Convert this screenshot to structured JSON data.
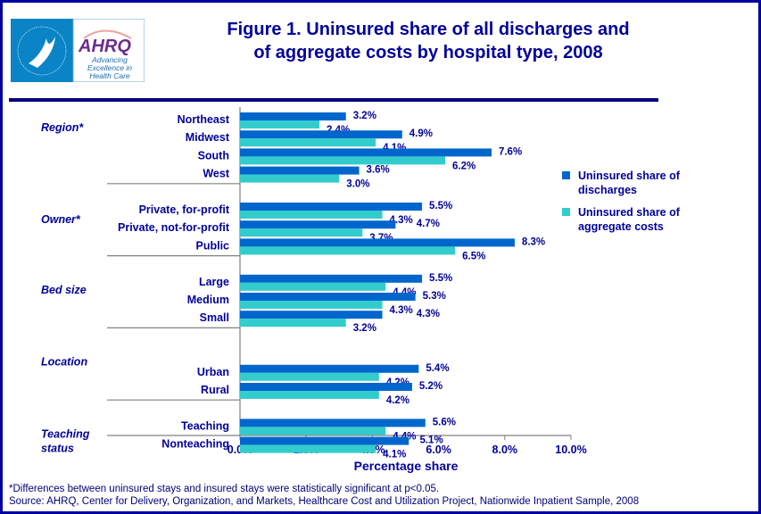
{
  "logo": {
    "text": "AHRQ",
    "tagline": "Advancing Excellence in Health Care",
    "seal_text": "DEPARTMENT OF HEALTH & HUMAN SERVICES USA"
  },
  "footnote": "*Differences between uninsured stays and insured stays were statistically significant at p<0.05.",
  "source": "Source:  AHRQ, Center for Delivery, Organization, and Markets, Healthcare Cost and Utilization Project, Nationwide Inpatient Sample, 2008",
  "chart_data": {
    "type": "bar",
    "orientation": "horizontal",
    "title": "Figure 1. Uninsured share of all discharges and of aggregate costs by hospital type, 2008",
    "title_lines": [
      "Figure 1. Uninsured share of all discharges and",
      "of aggregate costs by hospital type, 2008"
    ],
    "xlabel": "Percentage share",
    "xlim": [
      0,
      10
    ],
    "xticks": [
      "0.0%",
      "2.0%",
      "4.0%",
      "6.0%",
      "8.0%",
      "10.0%"
    ],
    "grid": false,
    "legend_position": "right",
    "colors": {
      "discharges": "#0066cc",
      "costs": "#33cccc",
      "text": "#00009c"
    },
    "series": [
      {
        "name": "Uninsured share of discharges",
        "name_lines": [
          "Uninsured share of",
          "discharges"
        ]
      },
      {
        "name": "Uninsured share of aggregate costs",
        "name_lines": [
          "Uninsured share of",
          "aggregate costs"
        ]
      }
    ],
    "groups": [
      {
        "label": "Region*",
        "label_lines": [
          "Region*"
        ],
        "categories": [
          {
            "label": "Northeast",
            "values": [
              3.2,
              2.4
            ]
          },
          {
            "label": "Midwest",
            "values": [
              4.9,
              4.1
            ]
          },
          {
            "label": "South",
            "values": [
              7.6,
              6.2
            ]
          },
          {
            "label": "West",
            "values": [
              3.6,
              3.0
            ]
          }
        ]
      },
      {
        "label": "Owner*",
        "label_lines": [
          "Owner*"
        ],
        "categories": [
          {
            "label": "Private, for-profit",
            "values": [
              5.5,
              4.3
            ]
          },
          {
            "label": "Private, not-for-profit",
            "values": [
              4.7,
              3.7
            ]
          },
          {
            "label": "Public",
            "values": [
              8.3,
              6.5
            ]
          }
        ]
      },
      {
        "label": "Bed size",
        "label_lines": [
          "Bed size"
        ],
        "categories": [
          {
            "label": "Large",
            "values": [
              5.5,
              4.4
            ]
          },
          {
            "label": "Medium",
            "values": [
              5.3,
              4.3
            ]
          },
          {
            "label": "Small",
            "values": [
              4.3,
              3.2
            ]
          }
        ]
      },
      {
        "label": "Location",
        "label_lines": [
          "Location"
        ],
        "categories": [
          {
            "label": "Urban",
            "values": [
              5.4,
              4.2
            ]
          },
          {
            "label": "Rural",
            "values": [
              5.2,
              4.2
            ]
          }
        ]
      },
      {
        "label": "Teaching status",
        "label_lines": [
          "Teaching",
          "status"
        ],
        "categories": [
          {
            "label": "Teaching",
            "values": [
              5.6,
              4.4
            ]
          },
          {
            "label": "Nonteaching",
            "values": [
              5.1,
              4.1
            ]
          }
        ]
      }
    ]
  }
}
